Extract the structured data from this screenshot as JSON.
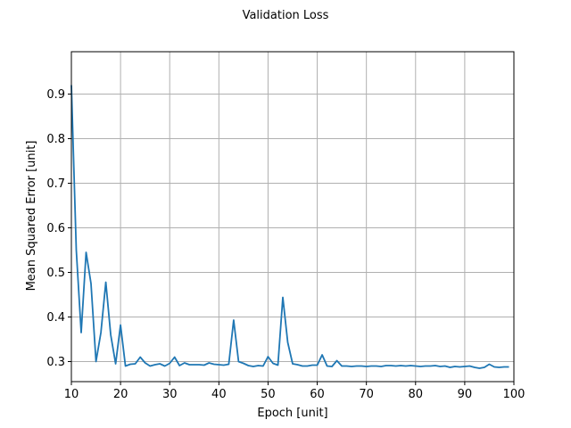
{
  "chart_data": {
    "type": "line",
    "title": "Validation Loss",
    "xlabel": "Epoch [unit]",
    "ylabel": "Mean Squared Error [unit]",
    "xlim": [
      10,
      100
    ],
    "ylim": [
      0.255,
      0.995
    ],
    "xticks": [
      10,
      20,
      30,
      40,
      50,
      60,
      70,
      80,
      90,
      100
    ],
    "yticks": [
      0.3,
      0.4,
      0.5,
      0.6,
      0.7,
      0.8,
      0.9
    ],
    "grid": true,
    "legend": "none",
    "series": [
      {
        "color": "#1f77b4",
        "x": [
          10,
          11,
          12,
          13,
          14,
          15,
          16,
          17,
          18,
          19,
          20,
          21,
          22,
          23,
          24,
          25,
          26,
          27,
          28,
          29,
          30,
          31,
          32,
          33,
          34,
          35,
          36,
          37,
          38,
          39,
          40,
          41,
          42,
          43,
          44,
          45,
          46,
          47,
          48,
          49,
          50,
          51,
          52,
          53,
          54,
          55,
          56,
          57,
          58,
          59,
          60,
          61,
          62,
          63,
          64,
          65,
          66,
          67,
          68,
          69,
          70,
          71,
          72,
          73,
          74,
          75,
          76,
          77,
          78,
          79,
          80,
          81,
          82,
          83,
          84,
          85,
          86,
          87,
          88,
          89,
          90,
          91,
          92,
          93,
          94,
          95,
          96,
          97,
          98,
          99
        ],
        "y": [
          0.92,
          0.55,
          0.365,
          0.545,
          0.475,
          0.3,
          0.365,
          0.478,
          0.36,
          0.295,
          0.382,
          0.29,
          0.294,
          0.295,
          0.31,
          0.297,
          0.29,
          0.293,
          0.295,
          0.29,
          0.296,
          0.31,
          0.291,
          0.297,
          0.293,
          0.293,
          0.293,
          0.292,
          0.297,
          0.294,
          0.293,
          0.292,
          0.294,
          0.393,
          0.3,
          0.296,
          0.291,
          0.289,
          0.291,
          0.29,
          0.311,
          0.296,
          0.292,
          0.444,
          0.343,
          0.295,
          0.293,
          0.29,
          0.29,
          0.292,
          0.292,
          0.315,
          0.29,
          0.289,
          0.302,
          0.29,
          0.29,
          0.289,
          0.29,
          0.29,
          0.289,
          0.29,
          0.29,
          0.289,
          0.291,
          0.291,
          0.29,
          0.291,
          0.29,
          0.291,
          0.29,
          0.289,
          0.29,
          0.29,
          0.291,
          0.289,
          0.29,
          0.287,
          0.289,
          0.288,
          0.289,
          0.29,
          0.287,
          0.285,
          0.287,
          0.294,
          0.288,
          0.287,
          0.288,
          0.288
        ]
      }
    ]
  }
}
